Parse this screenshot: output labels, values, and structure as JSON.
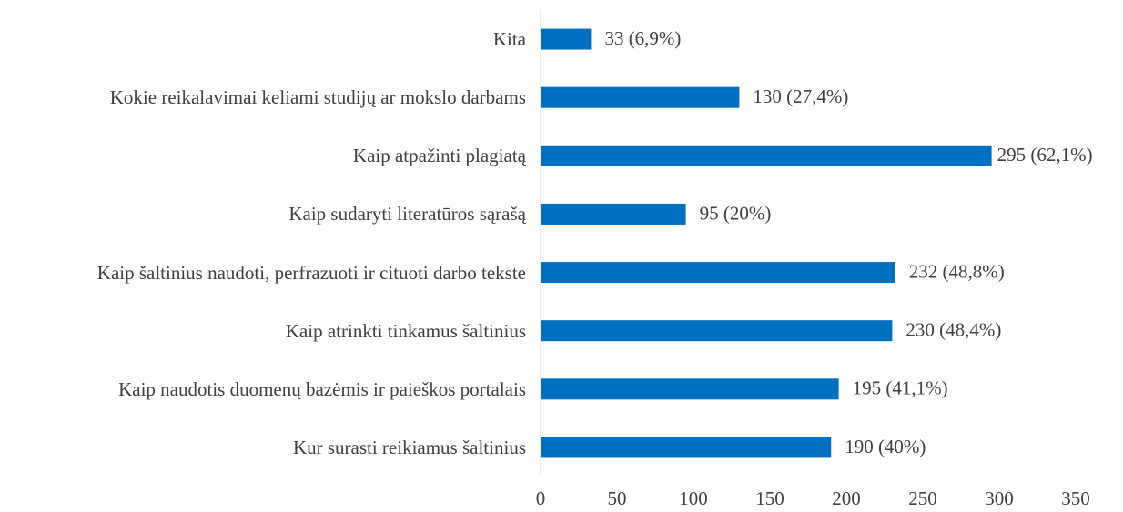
{
  "chart_data": {
    "type": "hbar",
    "categories": [
      "Kita",
      "Kokie reikalavimai keliami studijų ar mokslo darbams",
      "Kaip atpažinti plagiatą",
      "Kaip sudaryti literatūros sąrašą",
      "Kaip šaltinius naudoti, perfrazuoti ir cituoti darbo tekste",
      "Kaip atrinkti tinkamus šaltinius",
      "Kaip naudotis duomenų bazėmis ir paieškos portalais",
      "Kur surasti reikiamus šaltinius"
    ],
    "values": [
      33,
      130,
      295,
      95,
      232,
      230,
      195,
      190
    ],
    "value_labels": [
      "33 (6,9%)",
      "130 (27,4%)",
      "295 (62,1%)",
      "95 (20%)",
      "232 (48,8%)",
      "230 (48,4%)",
      "195 (41,1%)",
      "190 (40%)"
    ],
    "color": "#0070c0",
    "xlim": [
      0,
      350
    ],
    "xticks": [
      0,
      50,
      100,
      150,
      200,
      250,
      300,
      350
    ],
    "grid": false
  }
}
